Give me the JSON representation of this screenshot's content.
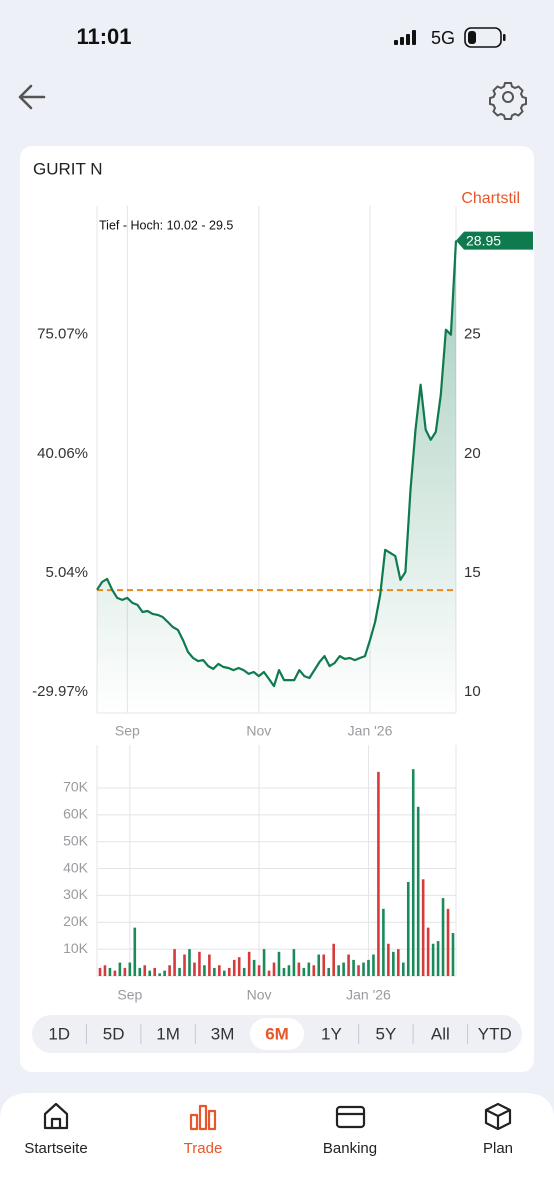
{
  "status_bar": {
    "time": "11:01",
    "network": "5G"
  },
  "card_title": "GURIT N",
  "chart_style": "Chartstil",
  "chart_data": [
    {
      "type": "line",
      "range_label": "Tief - Hoch: 10.02 - 29.5",
      "color": "#0e7a4e",
      "values": [
        14.29,
        14.62,
        14.75,
        14.29,
        13.95,
        13.87,
        13.95,
        13.74,
        13.66,
        13.36,
        13.4,
        13.28,
        13.24,
        13.15,
        12.94,
        12.73,
        12.61,
        12.18,
        11.68,
        11.43,
        11.3,
        11.34,
        11.09,
        10.97,
        11.18,
        11.05,
        11.01,
        10.92,
        11.01,
        10.92,
        10.76,
        10.84,
        10.67,
        10.84,
        10.55,
        10.25,
        10.92,
        10.5,
        10.5,
        10.5,
        10.92,
        10.67,
        10.59,
        10.92,
        11.26,
        11.51,
        11.09,
        11.22,
        11.51,
        11.39,
        11.43,
        11.34,
        11.43,
        11.51,
        12.18,
        12.94,
        14.08,
        15.97,
        15.84,
        15.71,
        14.71,
        15.04,
        18.49,
        21.01,
        22.9,
        21.01,
        20.59,
        20.92,
        22.48,
        25.21,
        25.0,
        28.95
      ],
      "baseline": 14.28,
      "baseline_color": "#e8891c",
      "xlim": [
        0,
        71
      ],
      "xticks": [
        {
          "value": 6,
          "label": "Sep"
        },
        {
          "value": 32,
          "label": "Nov"
        },
        {
          "value": 54,
          "label": "Jan '26"
        }
      ],
      "ylim": [
        9.12,
        29.9
      ],
      "yticks": [
        10,
        15,
        20,
        25
      ],
      "y2lim": [
        -36.13,
        109.38
      ],
      "y2ticks": [
        {
          "value": -29.97,
          "label": "-29.97%"
        },
        {
          "value": 5.04,
          "label": "5.04%"
        },
        {
          "value": 40.06,
          "label": "40.06%"
        },
        {
          "value": 75.07,
          "label": "75.07%"
        }
      ],
      "grid": true
    },
    {
      "type": "bar",
      "values": [
        3000,
        4000,
        3000,
        2000,
        5000,
        3000,
        5000,
        18000,
        3000,
        4000,
        2000,
        3000,
        1000,
        2000,
        4000,
        10000,
        3000,
        8000,
        10000,
        5000,
        9000,
        4000,
        8000,
        3000,
        4000,
        2000,
        3000,
        6000,
        7000,
        3000,
        9000,
        6000,
        4000,
        10000,
        2000,
        5000,
        9000,
        3000,
        4000,
        10000,
        5000,
        3000,
        5000,
        4000,
        8000,
        8000,
        3000,
        12000,
        4000,
        5000,
        8000,
        6000,
        4000,
        5000,
        6000,
        8000,
        76000,
        25000,
        12000,
        9000,
        10000,
        5000,
        35000,
        77000,
        63000,
        36000,
        18000,
        12000,
        13000,
        29000,
        25000,
        16000
      ],
      "colors": [
        "#d63a3a",
        "#d63a3a",
        "#1a8a5a",
        "#d63a3a",
        "#1a8a5a",
        "#d63a3a",
        "#1a8a5a",
        "#1a8a5a",
        "#1a8a5a",
        "#d63a3a",
        "#1a8a5a",
        "#d63a3a",
        "#1a8a5a",
        "#1a8a5a",
        "#d63a3a",
        "#d63a3a",
        "#1a8a5a",
        "#d63a3a",
        "#1a8a5a",
        "#d63a3a",
        "#d63a3a",
        "#1a8a5a",
        "#d63a3a",
        "#1a8a5a",
        "#d63a3a",
        "#1a8a5a",
        "#d63a3a",
        "#d63a3a",
        "#d63a3a",
        "#1a8a5a",
        "#d63a3a",
        "#1a8a5a",
        "#d63a3a",
        "#1a8a5a",
        "#d63a3a",
        "#d63a3a",
        "#1a8a5a",
        "#1a8a5a",
        "#1a8a5a",
        "#1a8a5a",
        "#d63a3a",
        "#1a8a5a",
        "#1a8a5a",
        "#d63a3a",
        "#1a8a5a",
        "#d63a3a",
        "#1a8a5a",
        "#d63a3a",
        "#1a8a5a",
        "#1a8a5a",
        "#d63a3a",
        "#1a8a5a",
        "#d63a3a",
        "#1a8a5a",
        "#1a8a5a",
        "#1a8a5a",
        "#d63a3a",
        "#1a8a5a",
        "#d63a3a",
        "#1a8a5a",
        "#d63a3a",
        "#1a8a5a",
        "#1a8a5a",
        "#1a8a5a",
        "#1a8a5a",
        "#d63a3a",
        "#d63a3a",
        "#1a8a5a",
        "#1a8a5a",
        "#1a8a5a",
        "#d63a3a",
        "#1a8a5a"
      ],
      "xlim": [
        0,
        71
      ],
      "xticks": [
        {
          "value": 6,
          "label": "Sep"
        },
        {
          "value": 32,
          "label": "Nov"
        },
        {
          "value": 54,
          "label": "Jan '26"
        }
      ],
      "ylim": [
        0,
        86000
      ],
      "yticks": [
        {
          "value": 10000,
          "label": "10K"
        },
        {
          "value": 20000,
          "label": "20K"
        },
        {
          "value": 30000,
          "label": "30K"
        },
        {
          "value": 40000,
          "label": "40K"
        },
        {
          "value": 50000,
          "label": "50K"
        },
        {
          "value": 60000,
          "label": "60K"
        },
        {
          "value": 70000,
          "label": "70K"
        }
      ],
      "grid": true
    }
  ],
  "periods": {
    "options": [
      "1D",
      "5D",
      "1M",
      "3M",
      "6M",
      "1Y",
      "5Y",
      "All",
      "YTD"
    ],
    "selected": 4
  },
  "nav": {
    "items": [
      "Startseite",
      "Trade",
      "Banking",
      "Plan"
    ],
    "active": 1
  }
}
